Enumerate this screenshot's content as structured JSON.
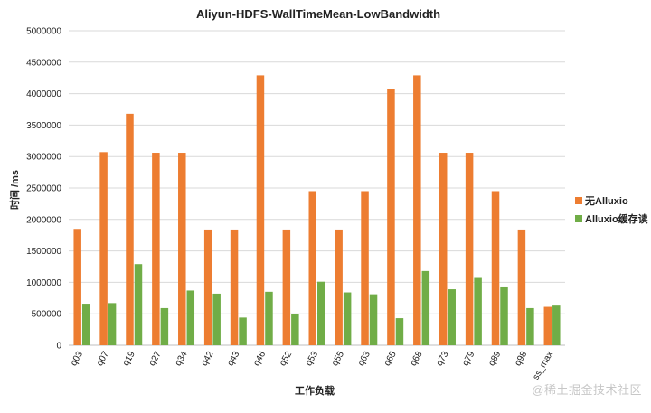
{
  "chart_data": {
    "type": "bar",
    "title": "Aliyun-HDFS-WallTimeMean-LowBandwidth",
    "xlabel": "工作负载",
    "ylabel": "时间 /ms",
    "ylim": [
      0,
      5000000
    ],
    "yticks": [
      "0",
      "500000",
      "1000000",
      "1500000",
      "2000000",
      "2500000",
      "3000000",
      "3500000",
      "4000000",
      "4500000",
      "5000000"
    ],
    "categories": [
      "q03",
      "q07",
      "q19",
      "q27",
      "q34",
      "q42",
      "q43",
      "q46",
      "q52",
      "q53",
      "q55",
      "q63",
      "q65",
      "q68",
      "q73",
      "q79",
      "q89",
      "q98",
      "ss_max"
    ],
    "series": [
      {
        "name": "无Alluxio",
        "color": "#ed7d31",
        "values": [
          1850000,
          3070000,
          3680000,
          3060000,
          3060000,
          1840000,
          1840000,
          4290000,
          1840000,
          2450000,
          1840000,
          2450000,
          4080000,
          4290000,
          3060000,
          3060000,
          2450000,
          1840000,
          610000
        ]
      },
      {
        "name": "Alluxio缓存读",
        "color": "#70ad47",
        "values": [
          660000,
          670000,
          1290000,
          590000,
          870000,
          820000,
          440000,
          850000,
          500000,
          1010000,
          840000,
          810000,
          430000,
          1180000,
          890000,
          1070000,
          920000,
          590000,
          630000
        ]
      }
    ],
    "legend_position": "right",
    "grid": true
  },
  "watermark": "@稀土掘金技术社区"
}
